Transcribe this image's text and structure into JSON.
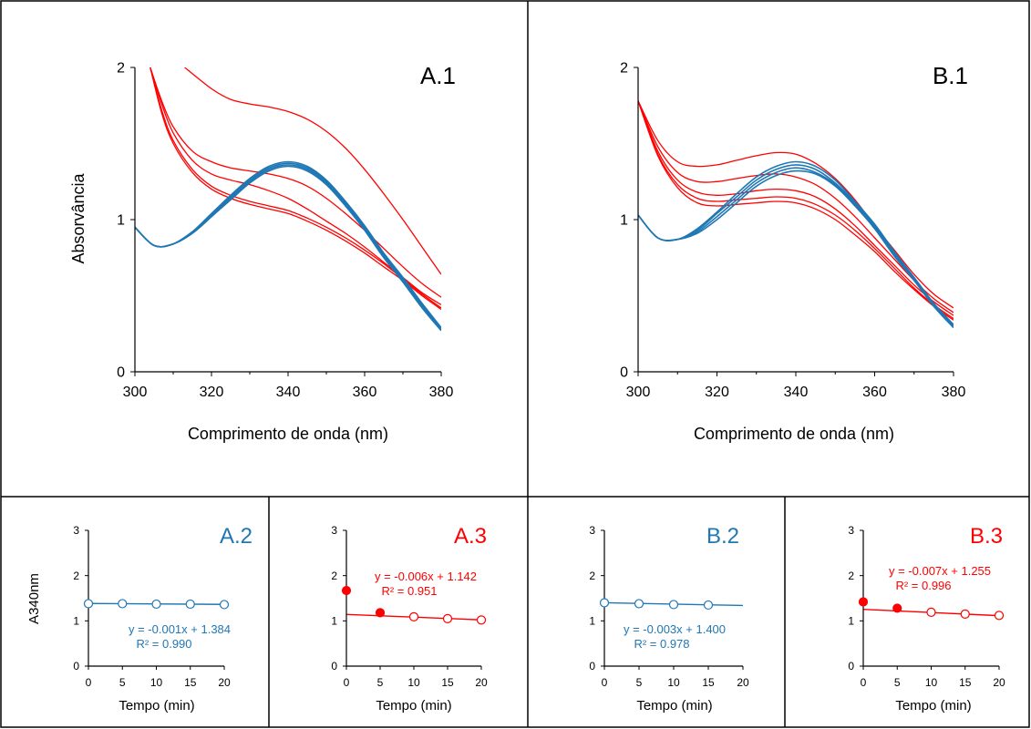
{
  "colors": {
    "blue": "#1f77b4",
    "red": "#ff0000",
    "axis": "#000000"
  },
  "chart_data": [
    {
      "id": "A.1",
      "type": "line",
      "panel_label": "A.1",
      "xlabel": "Comprimento de onda (nm)",
      "ylabel": "Absorvância",
      "xlim": [
        300,
        380
      ],
      "ylim": [
        0,
        2
      ],
      "xticks": [
        300,
        320,
        340,
        360,
        380
      ],
      "yticks": [
        0,
        1,
        2
      ],
      "series": [
        {
          "color": "blue",
          "x": [
            300,
            305,
            310,
            315,
            320,
            325,
            330,
            335,
            340,
            345,
            350,
            355,
            360,
            365,
            370,
            375,
            380
          ],
          "y": [
            0.95,
            0.83,
            0.84,
            0.92,
            1.04,
            1.16,
            1.27,
            1.35,
            1.38,
            1.35,
            1.26,
            1.12,
            0.96,
            0.78,
            0.62,
            0.45,
            0.29
          ]
        },
        {
          "color": "blue",
          "x": [
            300,
            305,
            310,
            315,
            320,
            325,
            330,
            335,
            340,
            345,
            350,
            355,
            360,
            365,
            370,
            375,
            380
          ],
          "y": [
            0.95,
            0.83,
            0.84,
            0.92,
            1.03,
            1.15,
            1.26,
            1.34,
            1.37,
            1.34,
            1.25,
            1.11,
            0.95,
            0.77,
            0.61,
            0.44,
            0.28
          ]
        },
        {
          "color": "blue",
          "x": [
            300,
            305,
            310,
            315,
            320,
            325,
            330,
            335,
            340,
            345,
            350,
            355,
            360,
            365,
            370,
            375,
            380
          ],
          "y": [
            0.95,
            0.83,
            0.84,
            0.91,
            1.02,
            1.14,
            1.25,
            1.33,
            1.36,
            1.33,
            1.24,
            1.1,
            0.94,
            0.76,
            0.6,
            0.43,
            0.28
          ]
        },
        {
          "color": "blue",
          "x": [
            300,
            305,
            310,
            315,
            320,
            325,
            330,
            335,
            340,
            345,
            350,
            355,
            360,
            365,
            370,
            375,
            380
          ],
          "y": [
            0.95,
            0.83,
            0.84,
            0.91,
            1.02,
            1.13,
            1.24,
            1.32,
            1.35,
            1.32,
            1.23,
            1.09,
            0.93,
            0.75,
            0.59,
            0.42,
            0.27
          ]
        },
        {
          "color": "red",
          "x": [
            313,
            320,
            325,
            330,
            335,
            340,
            345,
            350,
            355,
            360,
            365,
            370,
            375,
            380
          ],
          "y": [
            2.0,
            1.86,
            1.79,
            1.76,
            1.74,
            1.71,
            1.66,
            1.58,
            1.47,
            1.33,
            1.17,
            1.0,
            0.82,
            0.64
          ]
        },
        {
          "color": "red",
          "x": [
            304,
            307,
            310,
            315,
            320,
            325,
            330,
            335,
            340,
            345,
            350,
            355,
            360,
            365,
            370,
            375,
            380
          ],
          "y": [
            2.0,
            1.78,
            1.61,
            1.45,
            1.38,
            1.34,
            1.32,
            1.3,
            1.27,
            1.22,
            1.14,
            1.04,
            0.93,
            0.81,
            0.69,
            0.58,
            0.49
          ]
        },
        {
          "color": "red",
          "x": [
            304,
            307,
            310,
            315,
            320,
            325,
            330,
            335,
            340,
            345,
            350,
            355,
            360,
            365,
            370,
            375,
            380
          ],
          "y": [
            2.0,
            1.76,
            1.57,
            1.39,
            1.3,
            1.26,
            1.23,
            1.19,
            1.14,
            1.07,
            0.99,
            0.91,
            0.82,
            0.72,
            0.62,
            0.52,
            0.44
          ]
        },
        {
          "color": "red",
          "x": [
            304,
            307,
            310,
            315,
            320,
            325,
            330,
            335,
            340,
            345,
            350,
            355,
            360,
            365,
            370,
            375,
            380
          ],
          "y": [
            2.0,
            1.72,
            1.52,
            1.33,
            1.22,
            1.16,
            1.12,
            1.09,
            1.06,
            1.01,
            0.95,
            0.88,
            0.8,
            0.71,
            0.61,
            0.51,
            0.42
          ]
        },
        {
          "color": "red",
          "x": [
            304,
            307,
            310,
            315,
            320,
            325,
            330,
            335,
            340,
            345,
            350,
            355,
            360,
            365,
            370,
            375,
            380
          ],
          "y": [
            2.0,
            1.7,
            1.5,
            1.31,
            1.2,
            1.14,
            1.1,
            1.07,
            1.04,
            0.99,
            0.93,
            0.86,
            0.78,
            0.69,
            0.6,
            0.5,
            0.41
          ]
        }
      ]
    },
    {
      "id": "B.1",
      "type": "line",
      "panel_label": "B.1",
      "xlabel": "Comprimento de onda (nm)",
      "ylabel": "",
      "xlim": [
        300,
        380
      ],
      "ylim": [
        0,
        2
      ],
      "xticks": [
        300,
        320,
        340,
        360,
        380
      ],
      "yticks": [
        0,
        1,
        2
      ],
      "series": [
        {
          "color": "blue",
          "x": [
            300,
            305,
            310,
            315,
            320,
            325,
            330,
            335,
            340,
            345,
            350,
            355,
            360,
            365,
            370,
            375,
            380
          ],
          "y": [
            1.03,
            0.88,
            0.87,
            0.94,
            1.05,
            1.17,
            1.28,
            1.35,
            1.38,
            1.35,
            1.26,
            1.12,
            0.97,
            0.79,
            0.62,
            0.45,
            0.31
          ]
        },
        {
          "color": "blue",
          "x": [
            300,
            305,
            310,
            315,
            320,
            325,
            330,
            335,
            340,
            345,
            350,
            355,
            360,
            365,
            370,
            375,
            380
          ],
          "y": [
            1.03,
            0.88,
            0.87,
            0.93,
            1.04,
            1.15,
            1.26,
            1.33,
            1.36,
            1.33,
            1.24,
            1.11,
            0.96,
            0.78,
            0.61,
            0.44,
            0.3
          ]
        },
        {
          "color": "blue",
          "x": [
            300,
            305,
            310,
            315,
            320,
            325,
            330,
            335,
            340,
            345,
            350,
            355,
            360,
            365,
            370,
            375,
            380
          ],
          "y": [
            1.03,
            0.88,
            0.87,
            0.92,
            1.02,
            1.13,
            1.24,
            1.31,
            1.34,
            1.31,
            1.23,
            1.1,
            0.95,
            0.77,
            0.6,
            0.44,
            0.3
          ]
        },
        {
          "color": "blue",
          "x": [
            300,
            305,
            310,
            315,
            320,
            325,
            330,
            335,
            340,
            345,
            350,
            355,
            360,
            365,
            370,
            375,
            380
          ],
          "y": [
            1.03,
            0.88,
            0.87,
            0.91,
            1.0,
            1.11,
            1.22,
            1.29,
            1.32,
            1.3,
            1.22,
            1.09,
            0.94,
            0.76,
            0.6,
            0.43,
            0.29
          ]
        },
        {
          "color": "red",
          "x": [
            300,
            305,
            310,
            315,
            320,
            325,
            330,
            335,
            340,
            345,
            350,
            355,
            360,
            365,
            370,
            375,
            380
          ],
          "y": [
            1.78,
            1.52,
            1.38,
            1.35,
            1.36,
            1.39,
            1.42,
            1.44,
            1.43,
            1.37,
            1.27,
            1.13,
            0.96,
            0.8,
            0.64,
            0.51,
            0.42
          ]
        },
        {
          "color": "red",
          "x": [
            300,
            305,
            310,
            315,
            320,
            325,
            330,
            335,
            340,
            345,
            350,
            355,
            360,
            365,
            370,
            375,
            380
          ],
          "y": [
            1.78,
            1.48,
            1.31,
            1.25,
            1.25,
            1.27,
            1.29,
            1.3,
            1.28,
            1.23,
            1.14,
            1.02,
            0.88,
            0.74,
            0.6,
            0.48,
            0.39
          ]
        },
        {
          "color": "red",
          "x": [
            300,
            305,
            310,
            315,
            320,
            325,
            330,
            335,
            340,
            345,
            350,
            355,
            360,
            365,
            370,
            375,
            380
          ],
          "y": [
            1.78,
            1.45,
            1.26,
            1.18,
            1.16,
            1.17,
            1.19,
            1.2,
            1.19,
            1.15,
            1.07,
            0.96,
            0.83,
            0.7,
            0.57,
            0.46,
            0.37
          ]
        },
        {
          "color": "red",
          "x": [
            300,
            305,
            310,
            315,
            320,
            325,
            330,
            335,
            340,
            345,
            350,
            355,
            360,
            365,
            370,
            375,
            380
          ],
          "y": [
            1.78,
            1.43,
            1.23,
            1.14,
            1.12,
            1.13,
            1.14,
            1.15,
            1.14,
            1.1,
            1.03,
            0.93,
            0.81,
            0.68,
            0.55,
            0.44,
            0.35
          ]
        },
        {
          "color": "red",
          "x": [
            300,
            305,
            310,
            315,
            320,
            325,
            330,
            335,
            340,
            345,
            350,
            355,
            360,
            365,
            370,
            375,
            380
          ],
          "y": [
            1.78,
            1.42,
            1.21,
            1.11,
            1.09,
            1.1,
            1.11,
            1.12,
            1.11,
            1.07,
            1.0,
            0.9,
            0.79,
            0.66,
            0.54,
            0.43,
            0.34
          ]
        }
      ]
    },
    {
      "id": "A.2",
      "type": "scatter",
      "panel_label": "A.2",
      "label_color": "blue",
      "xlabel": "Tempo (min)",
      "ylabel": "A340nm",
      "xlim": [
        0,
        20
      ],
      "ylim": [
        0,
        3
      ],
      "xticks": [
        0,
        5,
        10,
        15,
        20
      ],
      "yticks": [
        0,
        1,
        2,
        3
      ],
      "series": [
        {
          "color": "blue",
          "x": [
            0,
            5,
            10,
            15,
            20
          ],
          "y": [
            1.38,
            1.38,
            1.37,
            1.37,
            1.36
          ],
          "filled": [
            false,
            false,
            false,
            false,
            false
          ]
        }
      ],
      "trendline": {
        "color": "blue",
        "slope": -0.001,
        "intercept": 1.384,
        "x_range": [
          0,
          20
        ]
      },
      "equation": {
        "color": "blue",
        "line1": "y = -0.001x  + 1.384",
        "line2": "R² = 0.990"
      }
    },
    {
      "id": "A.3",
      "type": "scatter",
      "panel_label": "A.3",
      "label_color": "red",
      "xlabel": "Tempo (min)",
      "ylabel": "",
      "xlim": [
        0,
        20
      ],
      "ylim": [
        0,
        3
      ],
      "xticks": [
        0,
        5,
        10,
        15,
        20
      ],
      "yticks": [
        0,
        1,
        2,
        3
      ],
      "series": [
        {
          "color": "red",
          "x": [
            0,
            5,
            10,
            15,
            20
          ],
          "y": [
            1.67,
            1.18,
            1.09,
            1.05,
            1.02
          ],
          "filled": [
            true,
            true,
            false,
            false,
            false
          ]
        }
      ],
      "trendline": {
        "color": "red",
        "slope": -0.006,
        "intercept": 1.142,
        "x_range": [
          0,
          20
        ]
      },
      "equation": {
        "color": "red",
        "line1": "y = -0.006x  + 1.142",
        "line2": "R² = 0.951"
      }
    },
    {
      "id": "B.2",
      "type": "scatter",
      "panel_label": "B.2",
      "label_color": "blue",
      "xlabel": "Tempo (min)",
      "ylabel": "",
      "xlim": [
        0,
        20
      ],
      "ylim": [
        0,
        3
      ],
      "xticks": [
        0,
        5,
        10,
        15,
        20
      ],
      "yticks": [
        0,
        1,
        2,
        3
      ],
      "series": [
        {
          "color": "blue",
          "x": [
            0,
            5,
            10,
            15
          ],
          "y": [
            1.4,
            1.38,
            1.36,
            1.35
          ],
          "filled": [
            false,
            false,
            false,
            false
          ]
        }
      ],
      "trendline": {
        "color": "blue",
        "slope": -0.003,
        "intercept": 1.4,
        "x_range": [
          0,
          20
        ]
      },
      "equation": {
        "color": "blue",
        "line1": "y = -0.003x  + 1.400",
        "line2": "R² = 0.978"
      }
    },
    {
      "id": "B.3",
      "type": "scatter",
      "panel_label": "B.3",
      "label_color": "red",
      "xlabel": "Tempo (min)",
      "ylabel": "",
      "xlim": [
        0,
        20
      ],
      "ylim": [
        0,
        3
      ],
      "xticks": [
        0,
        5,
        10,
        15,
        20
      ],
      "yticks": [
        0,
        1,
        2,
        3
      ],
      "series": [
        {
          "color": "red",
          "x": [
            0,
            5,
            10,
            15,
            20
          ],
          "y": [
            1.42,
            1.28,
            1.19,
            1.15,
            1.12
          ],
          "filled": [
            true,
            true,
            false,
            false,
            false
          ]
        }
      ],
      "trendline": {
        "color": "red",
        "slope": -0.007,
        "intercept": 1.255,
        "x_range": [
          0,
          20
        ]
      },
      "equation": {
        "color": "red",
        "line1": "y = -0.007x  + 1.255",
        "line2": "R² = 0.996"
      }
    }
  ]
}
